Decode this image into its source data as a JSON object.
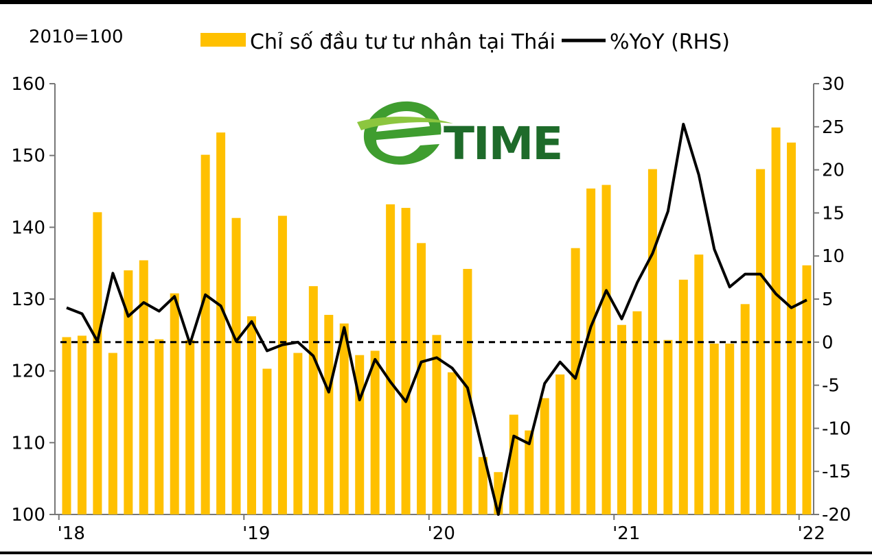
{
  "chart_data": {
    "type": "bar",
    "unit_label": "2010=100",
    "series": [
      {
        "name": "Chỉ số đầu tư tư nhân tại Thái",
        "type": "bar",
        "axis": "left",
        "color": "#ffc000",
        "values": [
          124.7,
          124.9,
          142.1,
          122.5,
          134.0,
          135.4,
          124.4,
          130.8,
          124.3,
          150.1,
          153.2,
          141.3,
          127.6,
          120.3,
          141.6,
          122.5,
          131.8,
          127.8,
          126.6,
          122.2,
          122.8,
          143.2,
          142.7,
          137.8,
          125.0,
          119.8,
          134.2,
          108.0,
          105.9,
          113.9,
          111.7,
          116.2,
          119.5,
          137.1,
          145.4,
          145.9,
          126.4,
          128.3,
          148.1,
          124.3,
          132.7,
          136.2,
          123.8,
          123.8,
          129.3,
          148.1,
          153.9,
          151.8,
          134.7
        ]
      },
      {
        "name": "%YoY (RHS)",
        "type": "line",
        "axis": "right",
        "color": "#000000",
        "values": [
          4.0,
          3.3,
          0.1,
          8.0,
          3.0,
          4.6,
          3.6,
          5.3,
          -0.2,
          5.5,
          4.2,
          0.1,
          2.4,
          -1.0,
          -0.3,
          0.0,
          -1.6,
          -5.8,
          1.7,
          -6.7,
          -2.0,
          -4.6,
          -6.9,
          -2.3,
          -1.8,
          -3.0,
          -5.3,
          -12.7,
          -20.0,
          -10.9,
          -11.8,
          -4.8,
          -2.3,
          -4.2,
          1.8,
          6.0,
          2.7,
          6.9,
          10.3,
          15.2,
          25.3,
          19.4,
          10.8,
          6.4,
          7.9,
          7.9,
          5.6,
          4.0,
          4.9
        ]
      }
    ],
    "reference_line": {
      "axis": "right",
      "value": 0,
      "style": "dashed"
    },
    "x_tick_labels": [
      {
        "label": "'18",
        "index": 0
      },
      {
        "label": "'19",
        "index": 12
      },
      {
        "label": "'20",
        "index": 24
      },
      {
        "label": "'21",
        "index": 36
      },
      {
        "label": "'22",
        "index": 48
      }
    ],
    "y_left": {
      "min": 100,
      "max": 160,
      "ticks": [
        100,
        110,
        120,
        130,
        140,
        150,
        160
      ]
    },
    "y_right": {
      "min": -20,
      "max": 30,
      "ticks": [
        -20,
        -15,
        -10,
        -5,
        0,
        5,
        10,
        15,
        20,
        25,
        30
      ]
    },
    "legend_placement": "top-center",
    "grid": false
  },
  "watermark": {
    "text": "TIME",
    "icon": "e-swoosh-logo"
  }
}
